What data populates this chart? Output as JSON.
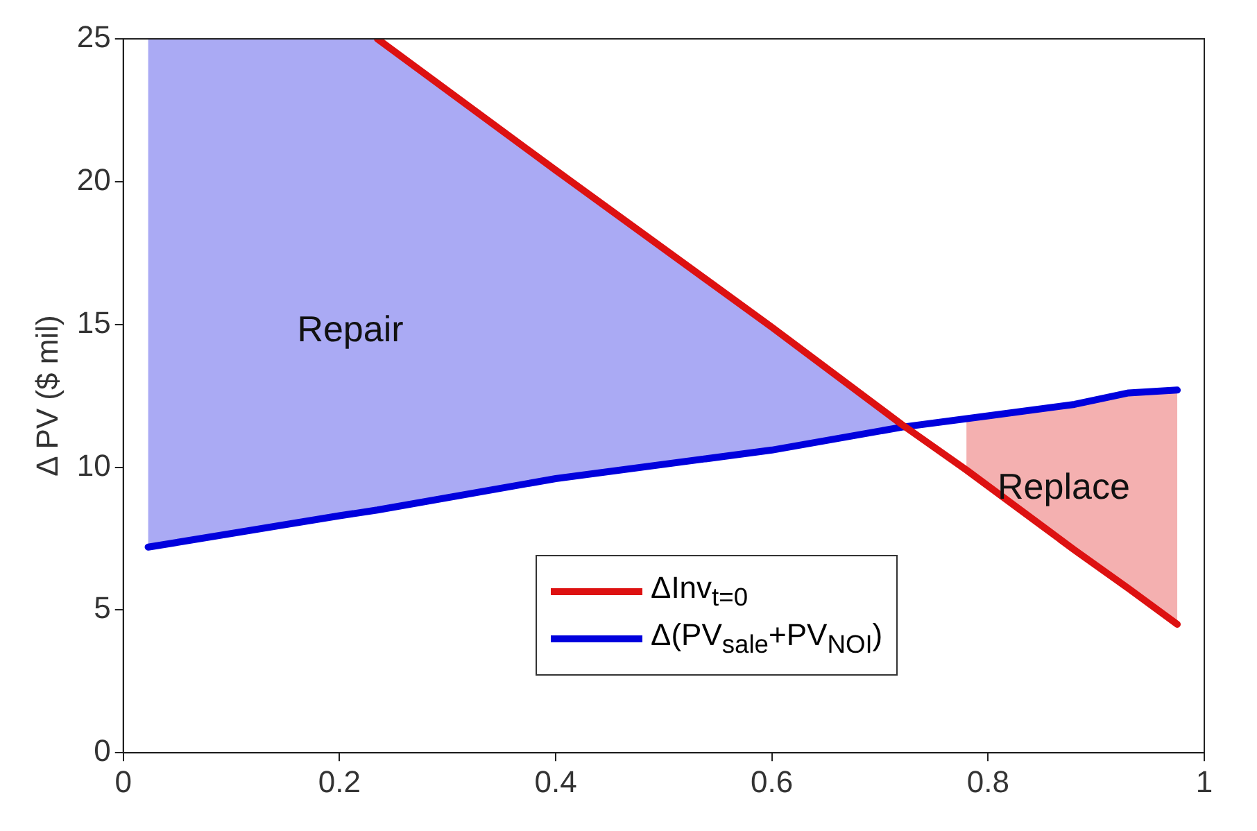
{
  "chart_data": {
    "type": "line",
    "ylabel": "Δ PV ($ mil)",
    "xlim": [
      0,
      1
    ],
    "xticks": [
      0,
      {
        "value": 0.2,
        "label": "0.2"
      },
      {
        "value": 0.4,
        "label": "0.4"
      },
      {
        "value": 0.6,
        "label": "0.6"
      },
      {
        "value": 0.8,
        "label": "0.8"
      },
      1
    ],
    "ylim": [
      0,
      25
    ],
    "yticks": [
      0,
      5,
      10,
      15,
      20,
      25
    ],
    "grid": false,
    "legend": "bottom",
    "series": [
      {
        "name": "ΔInv$_{t=0}$",
        "color": "#dd1111",
        "x": [
          0.235,
          0.4,
          0.6,
          0.72,
          0.78,
          0.88,
          0.93,
          0.975
        ],
        "values": [
          25,
          20.4,
          14.9,
          11.5,
          9.9,
          7.1,
          5.75,
          4.5
        ],
        "lower": [
          null,
          null,
          null,
          null,
          9.9,
          7.1,
          5.75,
          4.5
        ],
        "upper": [
          null,
          null,
          null,
          null,
          11.8,
          12.2,
          12.6,
          12.7
        ]
      },
      {
        "name": "Δ(PV$_{sale}$+PV$_{NOI}$)",
        "color": "#0000dd",
        "x": [
          0.023,
          0.2,
          0.235,
          0.4,
          0.6,
          0.72,
          0.8,
          0.88,
          0.93,
          0.975
        ],
        "values": [
          7.2,
          8.3,
          8.5,
          9.6,
          10.6,
          11.4,
          11.8,
          12.2,
          12.6,
          12.7
        ],
        "lower": [
          7.2,
          8.3,
          8.5,
          9.6,
          10.6,
          11.4,
          null,
          null,
          null,
          null
        ],
        "upper": [
          25,
          25,
          25,
          20.4,
          14.9,
          11.5,
          null,
          null,
          null,
          null
        ]
      }
    ],
    "annotations": [
      "Repair",
      "Replace"
    ]
  }
}
